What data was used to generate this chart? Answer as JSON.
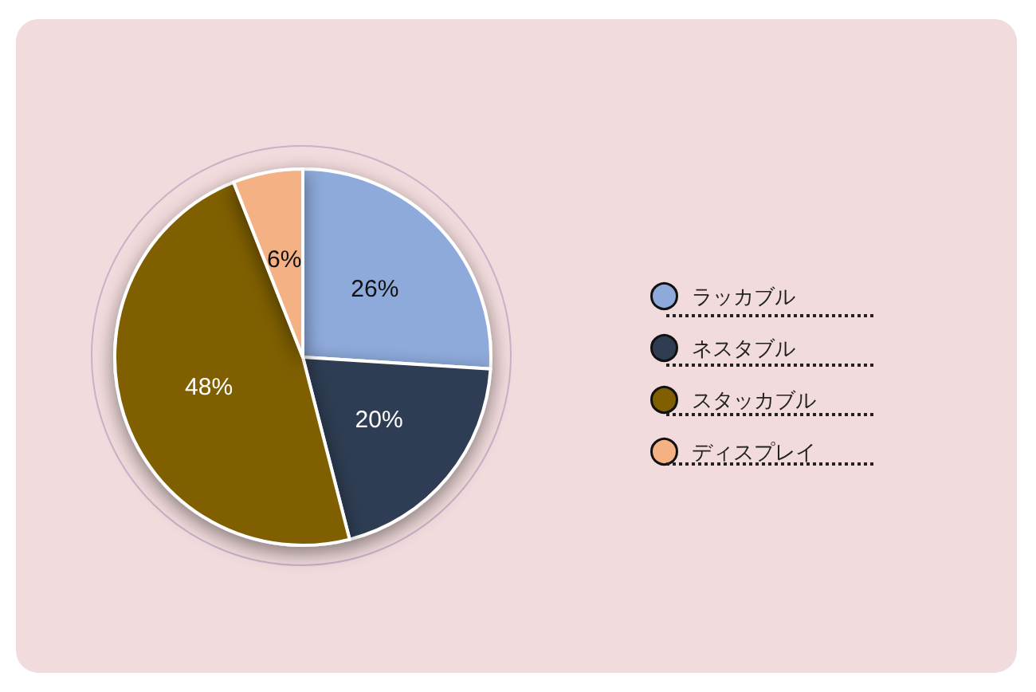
{
  "chart_data": {
    "type": "pie",
    "categories": [
      "ラッカブル",
      "ネスタブル",
      "スタッカブル",
      "ディスプレイ"
    ],
    "values": [
      26,
      20,
      48,
      6
    ],
    "colors": [
      "#8eaadb",
      "#2f3c52",
      "#7f5f00",
      "#f4b183"
    ],
    "value_labels": [
      "26%",
      "20%",
      "48%",
      "6%"
    ],
    "legend": "right"
  }
}
